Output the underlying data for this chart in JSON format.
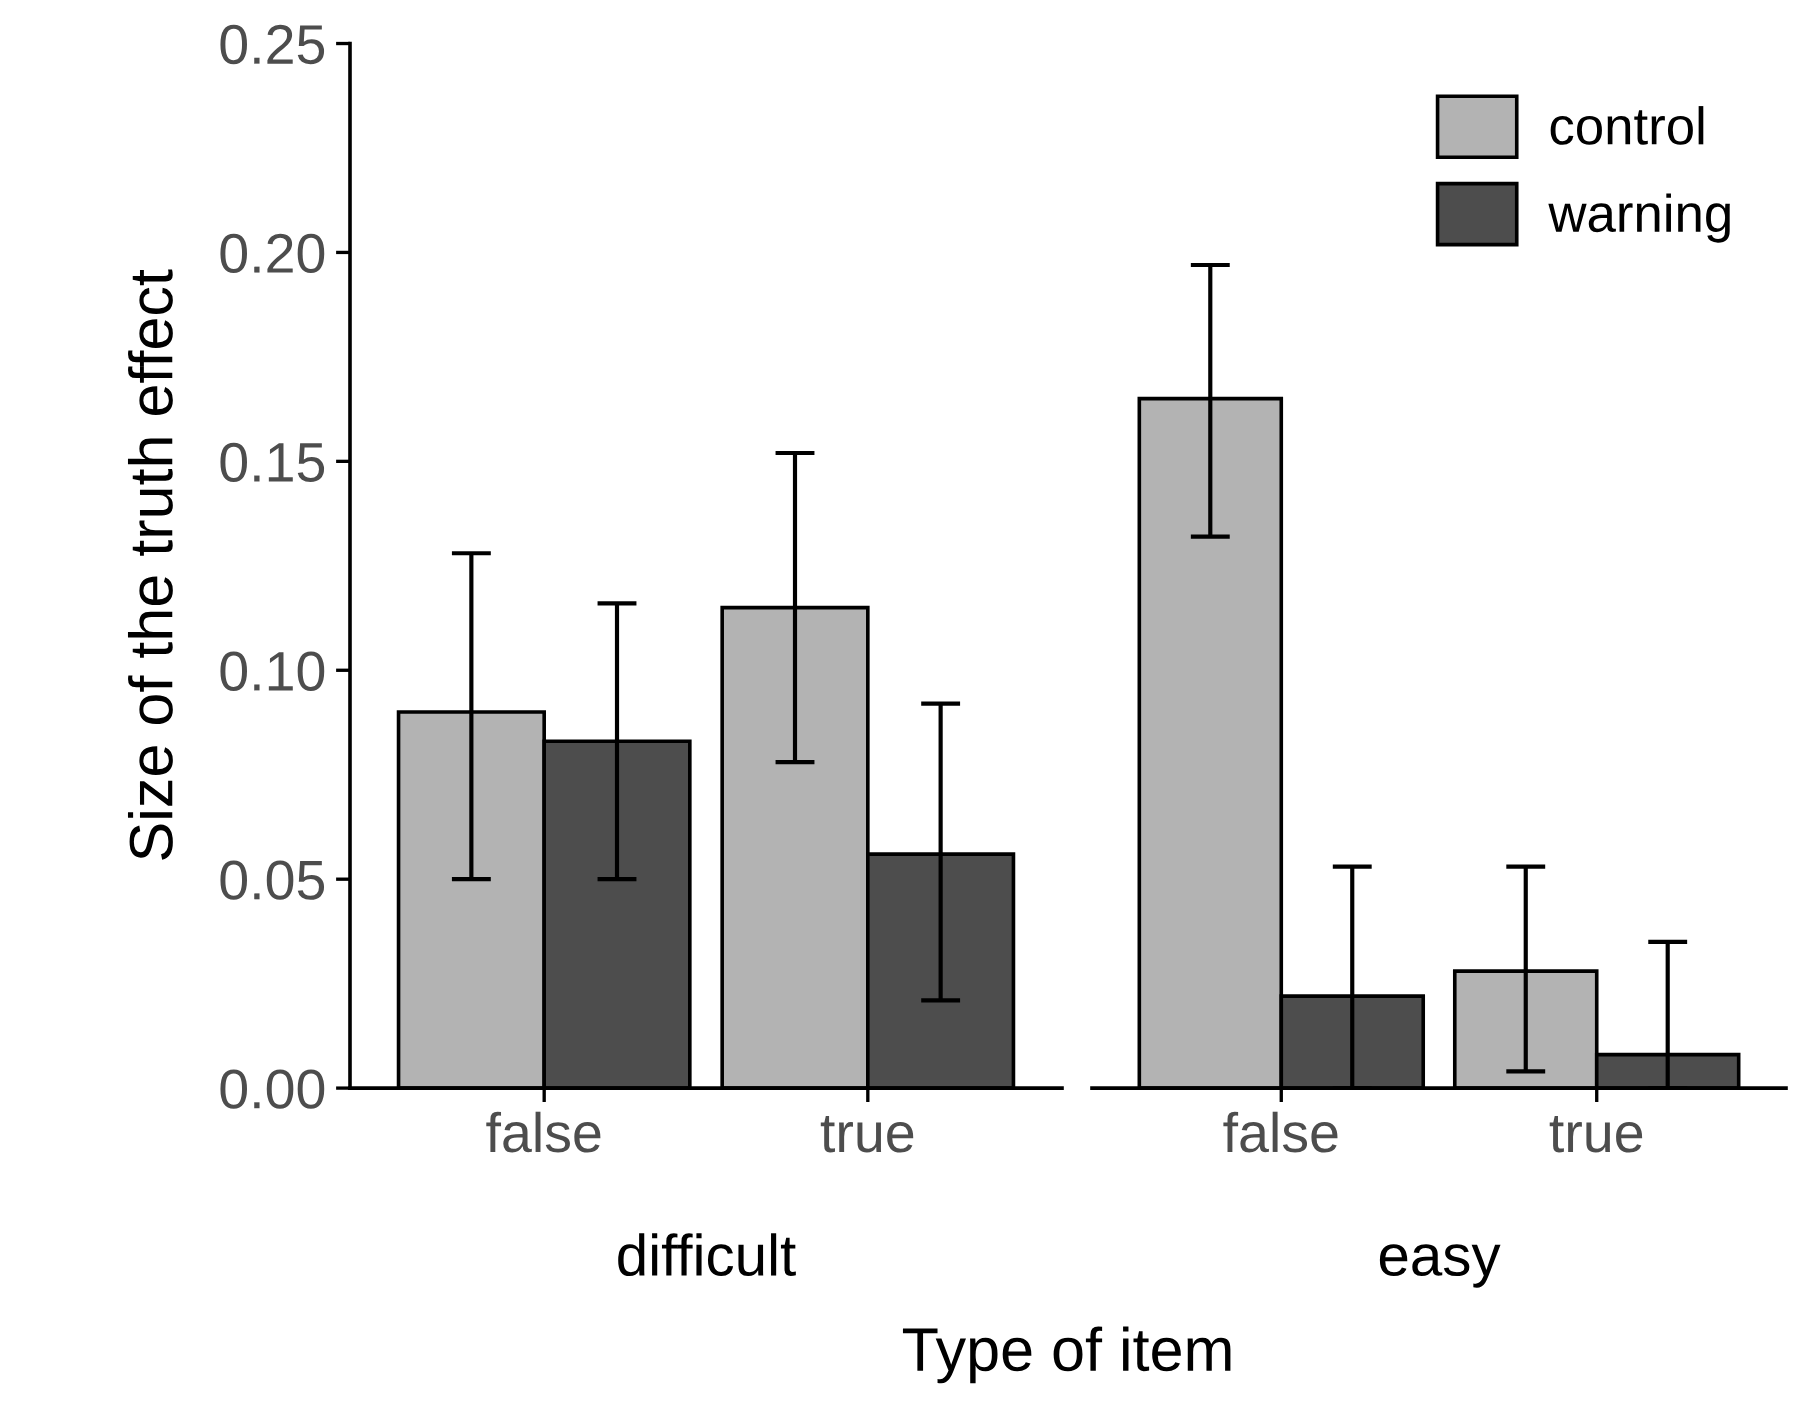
{
  "chart_data": [
    {
      "type": "bar",
      "title": "difficult",
      "xlabel": "Type of item",
      "ylabel": "Size of the truth effect",
      "categories": [
        "false",
        "true"
      ],
      "ylim": [
        0,
        0.25
      ],
      "yticks": [
        {
          "value": 0,
          "label": "0.00"
        },
        {
          "value": 0.05,
          "label": "0.05"
        },
        {
          "value": 0.1,
          "label": "0.10"
        },
        {
          "value": 0.15,
          "label": "0.15"
        },
        {
          "value": 0.2,
          "label": "0.20"
        },
        {
          "value": 0.25,
          "label": "0.25"
        }
      ],
      "grid": false,
      "series": [
        {
          "color": "#b3b3b3",
          "values": [
            0.09,
            0.115
          ],
          "errors": [
            [
              0.05,
              0.128
            ],
            [
              0.078,
              0.152
            ]
          ]
        },
        {
          "color": "#4d4d4d",
          "values": [
            0.083,
            0.056
          ],
          "errors": [
            [
              0.05,
              0.116
            ],
            [
              0.021,
              0.092
            ]
          ]
        }
      ]
    },
    {
      "type": "bar",
      "title": "easy",
      "categories": [
        "false",
        "true"
      ],
      "ylim": [
        0,
        0.25
      ],
      "tick_labels": "x",
      "grid": false,
      "legend": "top right",
      "series": [
        {
          "name": "control",
          "color": "#b3b3b3",
          "values": [
            0.165,
            0.028
          ],
          "errors": [
            [
              0.132,
              0.197
            ],
            [
              0.004,
              0.053
            ]
          ]
        },
        {
          "name": "warning",
          "color": "#4d4d4d",
          "values": [
            0.022,
            0.008
          ],
          "errors": [
            [
              0,
              0.053
            ],
            [
              0,
              0.035
            ]
          ]
        }
      ]
    }
  ]
}
